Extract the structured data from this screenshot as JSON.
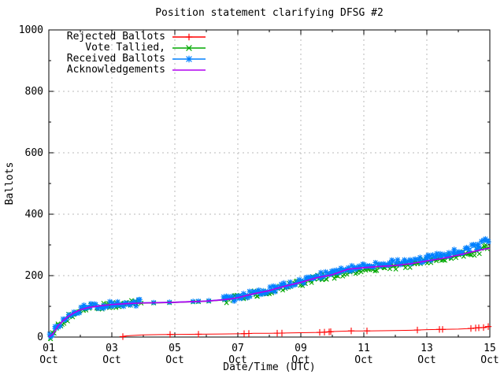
{
  "colors": {
    "background": "#ffffff",
    "axis": "#000000",
    "text": "#000000",
    "grid": "#b8b8b8"
  },
  "chart_data": {
    "type": "line",
    "title": "Position statement clarifying DFSG #2",
    "xlabel": "Date/Time (UTC)",
    "ylabel": "Ballots",
    "ylim": [
      0,
      1000
    ],
    "xlim_days": [
      0,
      14
    ],
    "grid": true,
    "legend_position": "top-left",
    "y_major_ticks": [
      0,
      200,
      400,
      600,
      800,
      1000
    ],
    "y_minor_step": 100,
    "x_minor_step_days": 1,
    "x_ticks": [
      {
        "d": 0,
        "line1": "01",
        "line2": "Oct"
      },
      {
        "d": 2,
        "line1": "03",
        "line2": "Oct"
      },
      {
        "d": 4,
        "line1": "05",
        "line2": "Oct"
      },
      {
        "d": 6,
        "line1": "07",
        "line2": "Oct"
      },
      {
        "d": 8,
        "line1": "09",
        "line2": "Oct"
      },
      {
        "d": 10,
        "line1": "11",
        "line2": "Oct"
      },
      {
        "d": 12,
        "line1": "13",
        "line2": "Oct"
      },
      {
        "d": 14,
        "line1": "15",
        "line2": "Oct"
      }
    ],
    "series": [
      {
        "name": "Rejected Ballots",
        "color": "#ff0000",
        "marker": "plus",
        "points": [
          [
            2.33,
            1
          ],
          [
            2.4,
            3
          ],
          [
            2.6,
            5
          ],
          [
            3.0,
            7
          ],
          [
            3.5,
            8
          ],
          [
            4.5,
            9
          ],
          [
            5.5,
            10
          ],
          [
            6.2,
            11
          ],
          [
            6.5,
            12
          ],
          [
            7.0,
            12
          ],
          [
            7.5,
            13
          ],
          [
            8.0,
            14
          ],
          [
            8.6,
            15
          ],
          [
            8.9,
            17
          ],
          [
            9.0,
            18
          ],
          [
            9.6,
            20
          ],
          [
            10.1,
            20
          ],
          [
            11.0,
            21
          ],
          [
            11.5,
            22
          ],
          [
            12.0,
            24
          ],
          [
            12.5,
            25
          ],
          [
            13.0,
            26
          ],
          [
            13.4,
            28
          ],
          [
            13.6,
            30
          ],
          [
            13.8,
            31
          ],
          [
            14.0,
            35
          ]
        ],
        "marker_days": [
          2.35,
          3.85,
          4.75,
          6.2,
          6.35,
          7.25,
          7.4,
          8.6,
          8.75,
          8.9,
          8.95,
          9.6,
          10.1,
          11.7,
          12.4,
          12.5,
          13.4,
          13.55,
          13.65,
          13.8,
          13.95
        ]
      },
      {
        "name": "Vote Tallied,",
        "color": "#00a800",
        "marker": "cross",
        "points": [
          [
            0,
            0
          ],
          [
            0.12,
            8
          ],
          [
            0.2,
            20
          ],
          [
            0.3,
            36
          ],
          [
            0.45,
            52
          ],
          [
            0.6,
            65
          ],
          [
            0.8,
            78
          ],
          [
            1.0,
            88
          ],
          [
            1.25,
            95
          ],
          [
            1.5,
            99
          ],
          [
            1.75,
            102
          ],
          [
            2.0,
            105
          ],
          [
            2.5,
            108
          ],
          [
            3.0,
            110
          ],
          [
            3.5,
            111
          ],
          [
            4.0,
            112
          ],
          [
            4.5,
            114
          ],
          [
            5.0,
            116
          ],
          [
            5.5,
            120
          ],
          [
            5.75,
            123
          ],
          [
            6.0,
            127
          ],
          [
            6.25,
            134
          ],
          [
            6.5,
            140
          ],
          [
            6.75,
            145
          ],
          [
            7.0,
            150
          ],
          [
            7.25,
            158
          ],
          [
            7.5,
            165
          ],
          [
            7.75,
            171
          ],
          [
            8.0,
            176
          ],
          [
            8.25,
            184
          ],
          [
            8.5,
            191
          ],
          [
            8.75,
            196
          ],
          [
            9.0,
            200
          ],
          [
            9.25,
            206
          ],
          [
            9.5,
            212
          ],
          [
            9.75,
            217
          ],
          [
            10.0,
            220
          ],
          [
            10.25,
            223
          ],
          [
            10.5,
            226
          ],
          [
            10.75,
            228
          ],
          [
            11.0,
            230
          ],
          [
            11.25,
            233
          ],
          [
            11.5,
            236
          ],
          [
            11.75,
            240
          ],
          [
            12.0,
            245
          ],
          [
            12.25,
            249
          ],
          [
            12.5,
            253
          ],
          [
            12.75,
            258
          ],
          [
            13.0,
            263
          ],
          [
            13.25,
            269
          ],
          [
            13.5,
            276
          ],
          [
            13.75,
            284
          ],
          [
            14.0,
            294
          ]
        ],
        "dense_ranges": [
          [
            0.02,
            2.95
          ],
          [
            5.55,
            14
          ]
        ],
        "sparse_days": [
          3.33,
          3.83,
          4.58,
          4.75,
          5.08,
          5.58
        ]
      },
      {
        "name": "Received Ballots",
        "color": "#0080ff",
        "marker": "star",
        "points": [
          [
            0,
            0
          ],
          [
            0.12,
            10
          ],
          [
            0.2,
            22
          ],
          [
            0.3,
            38
          ],
          [
            0.45,
            55
          ],
          [
            0.6,
            68
          ],
          [
            0.8,
            80
          ],
          [
            1.0,
            90
          ],
          [
            1.25,
            97
          ],
          [
            1.5,
            101
          ],
          [
            1.75,
            104
          ],
          [
            2.0,
            107
          ],
          [
            2.5,
            110
          ],
          [
            3.0,
            112
          ],
          [
            3.5,
            113
          ],
          [
            4.0,
            114
          ],
          [
            4.5,
            116
          ],
          [
            5.0,
            118
          ],
          [
            5.5,
            122
          ],
          [
            5.75,
            125
          ],
          [
            6.0,
            129
          ],
          [
            6.25,
            137
          ],
          [
            6.5,
            143
          ],
          [
            6.75,
            148
          ],
          [
            7.0,
            153
          ],
          [
            7.25,
            161
          ],
          [
            7.5,
            169
          ],
          [
            7.75,
            175
          ],
          [
            8.0,
            181
          ],
          [
            8.25,
            190
          ],
          [
            8.5,
            197
          ],
          [
            8.75,
            202
          ],
          [
            9.0,
            208
          ],
          [
            9.25,
            214
          ],
          [
            9.5,
            220
          ],
          [
            9.75,
            227
          ],
          [
            10.0,
            231
          ],
          [
            10.25,
            234
          ],
          [
            10.5,
            237
          ],
          [
            10.75,
            239
          ],
          [
            11.0,
            241
          ],
          [
            11.25,
            244
          ],
          [
            11.5,
            248
          ],
          [
            11.75,
            252
          ],
          [
            12.0,
            257
          ],
          [
            12.25,
            261
          ],
          [
            12.5,
            266
          ],
          [
            12.75,
            271
          ],
          [
            13.0,
            277
          ],
          [
            13.25,
            284
          ],
          [
            13.5,
            293
          ],
          [
            13.75,
            305
          ],
          [
            14.0,
            320
          ]
        ],
        "dense_ranges": [
          [
            0.02,
            2.95
          ],
          [
            5.55,
            14
          ]
        ],
        "sparse_days": [
          3.33,
          3.83,
          4.58,
          4.75,
          5.08,
          5.58
        ]
      },
      {
        "name": "Acknowledgements",
        "color": "#b000f0",
        "marker": "none",
        "points": [
          [
            0,
            0
          ],
          [
            0.12,
            9
          ],
          [
            0.2,
            21
          ],
          [
            0.3,
            37
          ],
          [
            0.45,
            53
          ],
          [
            0.6,
            66
          ],
          [
            0.8,
            79
          ],
          [
            1.0,
            89
          ],
          [
            1.25,
            96
          ],
          [
            1.5,
            100
          ],
          [
            1.75,
            103
          ],
          [
            2.0,
            106
          ],
          [
            2.5,
            109
          ],
          [
            3.0,
            111
          ],
          [
            3.5,
            112
          ],
          [
            4.0,
            113
          ],
          [
            4.5,
            115
          ],
          [
            5.0,
            117
          ],
          [
            5.5,
            121
          ],
          [
            5.75,
            124
          ],
          [
            6.0,
            128
          ],
          [
            6.25,
            135
          ],
          [
            6.5,
            141
          ],
          [
            6.75,
            146
          ],
          [
            7.0,
            151
          ],
          [
            7.25,
            159
          ],
          [
            7.5,
            166
          ],
          [
            7.75,
            172
          ],
          [
            8.0,
            178
          ],
          [
            8.5,
            193
          ],
          [
            9.0,
            203
          ],
          [
            9.5,
            221
          ],
          [
            10.0,
            226
          ],
          [
            10.5,
            230
          ],
          [
            11.0,
            233
          ],
          [
            11.5,
            239
          ],
          [
            12.0,
            248
          ],
          [
            12.5,
            256
          ],
          [
            13.0,
            267
          ],
          [
            13.5,
            279
          ],
          [
            14.0,
            290
          ]
        ]
      }
    ]
  }
}
